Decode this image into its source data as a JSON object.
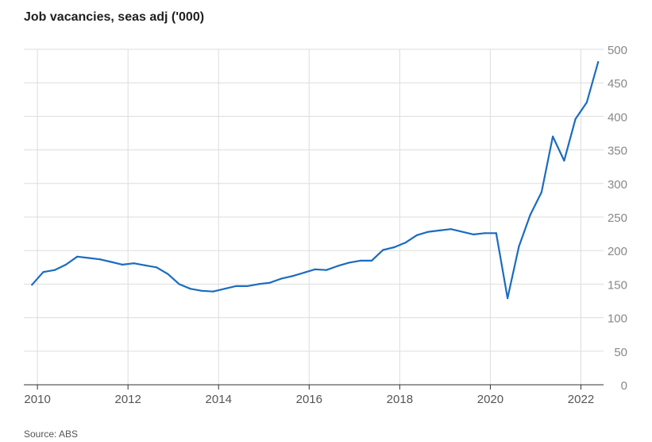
{
  "chart_data": {
    "type": "line",
    "title": "Job vacancies, seas adj ('000)",
    "source": "Source: ABS",
    "xlabel": "",
    "ylabel": "",
    "xlim": [
      2009.7,
      2022.5
    ],
    "ylim": [
      0,
      500
    ],
    "x_ticks": [
      2010,
      2012,
      2014,
      2016,
      2018,
      2020,
      2022
    ],
    "y_ticks": [
      0,
      50,
      100,
      150,
      200,
      250,
      300,
      350,
      400,
      450,
      500
    ],
    "grid": true,
    "y_axis_side": "right",
    "line_color": "#1a6cc0",
    "grid_color": "#dddddd",
    "axis_color": "#333333",
    "tick_label_color": "#888888",
    "series": [
      {
        "x": [
          2009.88,
          2010.13,
          2010.38,
          2010.63,
          2010.88,
          2011.13,
          2011.38,
          2011.63,
          2011.88,
          2012.13,
          2012.38,
          2012.63,
          2012.88,
          2013.13,
          2013.38,
          2013.63,
          2013.88,
          2014.13,
          2014.38,
          2014.63,
          2014.88,
          2015.13,
          2015.38,
          2015.63,
          2015.88,
          2016.13,
          2016.38,
          2016.63,
          2016.88,
          2017.13,
          2017.38,
          2017.63,
          2017.88,
          2018.13,
          2018.38,
          2018.63,
          2018.88,
          2019.13,
          2019.38,
          2019.63,
          2019.88,
          2020.13,
          2020.38,
          2020.63,
          2020.88,
          2021.13,
          2021.38,
          2021.63,
          2021.88,
          2022.13,
          2022.38
        ],
        "values": [
          149,
          168,
          171,
          179,
          191,
          189,
          187,
          183,
          179,
          181,
          178,
          175,
          165,
          150,
          143,
          140,
          139,
          143,
          147,
          147,
          150,
          152,
          158,
          162,
          167,
          172,
          171,
          177,
          182,
          185,
          185,
          201,
          205,
          212,
          223,
          228,
          230,
          232,
          228,
          224,
          226,
          226,
          129,
          206,
          253,
          287,
          370,
          334,
          396,
          421,
          481
        ]
      }
    ]
  }
}
